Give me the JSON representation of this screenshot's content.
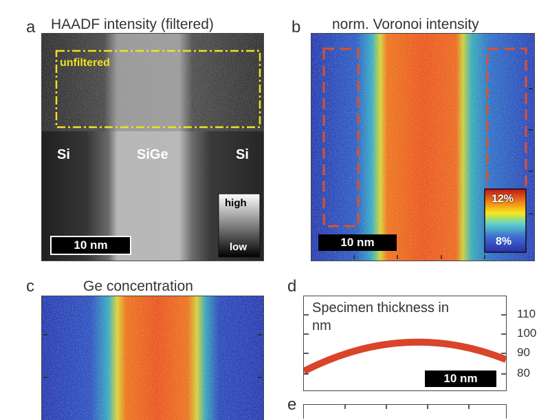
{
  "panels": {
    "a": {
      "letter": "a",
      "title": "HAADF intensity (filtered)",
      "box_label": "unfiltered",
      "regions": [
        "Si",
        "SiGe",
        "Si"
      ],
      "scalebar": "10 nm",
      "colorbar": {
        "high": "high",
        "low": "low"
      }
    },
    "b": {
      "letter": "b",
      "title": "norm. Voronoi intensity",
      "scalebar": "10 nm",
      "colorbar": {
        "max": "12%",
        "min": "8%"
      }
    },
    "c": {
      "letter": "c",
      "title": "Ge concentration"
    },
    "d": {
      "letter": "d",
      "title_line1": "Specimen thickness in",
      "title_line2": "nm",
      "scalebar": "10 nm",
      "y_ticks": [
        "110",
        "100",
        "90",
        "80"
      ]
    },
    "e": {
      "letter": "e"
    }
  },
  "colors": {
    "frame": "#444444",
    "box_dashdot": "#f2e020",
    "roi_dashed": "#e0502a",
    "thickness_curve": "#d9442b"
  }
}
